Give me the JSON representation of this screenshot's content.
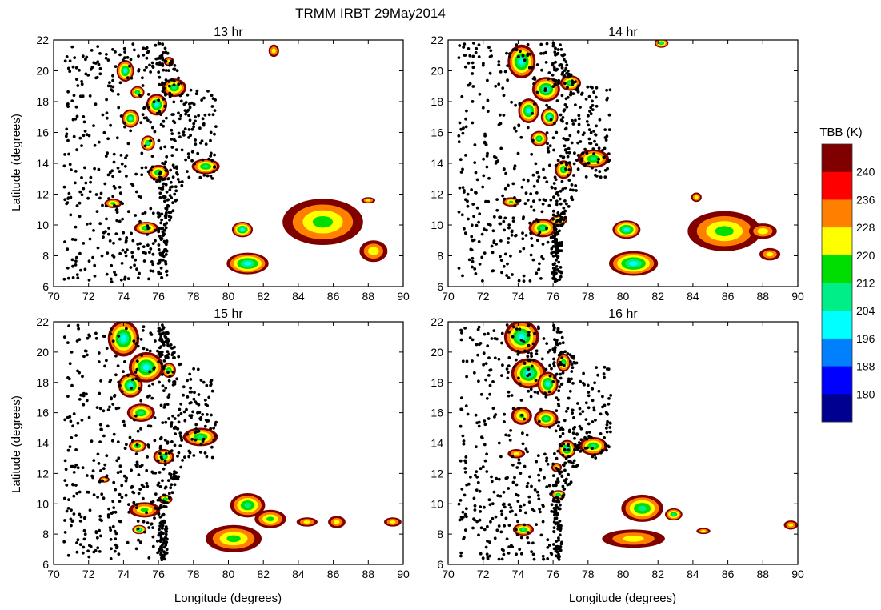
{
  "figure_title": "TRMM IRBT 29May2014",
  "xlabel": "Longitude (degrees)",
  "ylabel": "Latitude (degrees)",
  "colorbar": {
    "title": "TBB (K)",
    "tick_labels": [
      "240",
      "236",
      "228",
      "220",
      "212",
      "204",
      "196",
      "188",
      "180"
    ],
    "colors": [
      "#800000",
      "#ff0000",
      "#ff8000",
      "#ffff00",
      "#00dd00",
      "#00ee88",
      "#00ffff",
      "#0080ff",
      "#0000ff",
      "#000090"
    ]
  },
  "chart_data": [
    {
      "type": "heatmap",
      "title": "13 hr",
      "xlim": [
        70,
        90
      ],
      "ylim": [
        6,
        22
      ],
      "xticks": [
        70,
        72,
        74,
        76,
        78,
        80,
        82,
        84,
        86,
        88,
        90
      ],
      "yticks": [
        6,
        8,
        10,
        12,
        14,
        16,
        18,
        20,
        22
      ],
      "cloud_clusters": [
        {
          "lon": 74.1,
          "lat": 20.0,
          "rx": 0.5,
          "ry": 0.7,
          "min_tbb": 205
        },
        {
          "lon": 74.8,
          "lat": 18.6,
          "rx": 0.4,
          "ry": 0.4,
          "min_tbb": 212
        },
        {
          "lon": 75.9,
          "lat": 17.8,
          "rx": 0.6,
          "ry": 0.7,
          "min_tbb": 204
        },
        {
          "lon": 76.9,
          "lat": 18.9,
          "rx": 0.7,
          "ry": 0.6,
          "min_tbb": 212
        },
        {
          "lon": 74.4,
          "lat": 16.9,
          "rx": 0.5,
          "ry": 0.6,
          "min_tbb": 208
        },
        {
          "lon": 75.4,
          "lat": 15.3,
          "rx": 0.4,
          "ry": 0.5,
          "min_tbb": 210
        },
        {
          "lon": 76.0,
          "lat": 13.4,
          "rx": 0.6,
          "ry": 0.5,
          "min_tbb": 212
        },
        {
          "lon": 78.7,
          "lat": 13.8,
          "rx": 0.8,
          "ry": 0.5,
          "min_tbb": 212
        },
        {
          "lon": 73.4,
          "lat": 11.4,
          "rx": 0.5,
          "ry": 0.3,
          "min_tbb": 218
        },
        {
          "lon": 75.3,
          "lat": 9.8,
          "rx": 0.7,
          "ry": 0.4,
          "min_tbb": 212
        },
        {
          "lon": 80.8,
          "lat": 9.7,
          "rx": 0.6,
          "ry": 0.5,
          "min_tbb": 204
        },
        {
          "lon": 81.1,
          "lat": 7.5,
          "rx": 1.2,
          "ry": 0.7,
          "min_tbb": 204
        },
        {
          "lon": 85.4,
          "lat": 10.2,
          "rx": 2.3,
          "ry": 1.5,
          "min_tbb": 220
        },
        {
          "lon": 88.3,
          "lat": 8.3,
          "rx": 0.8,
          "ry": 0.7,
          "min_tbb": 226
        },
        {
          "lon": 82.6,
          "lat": 21.3,
          "rx": 0.3,
          "ry": 0.4,
          "min_tbb": 226
        },
        {
          "lon": 76.6,
          "lat": 20.6,
          "rx": 0.3,
          "ry": 0.3,
          "min_tbb": 226
        },
        {
          "lon": 88.0,
          "lat": 11.6,
          "rx": 0.4,
          "ry": 0.2,
          "min_tbb": 228
        }
      ]
    },
    {
      "type": "heatmap",
      "title": "14 hr",
      "xlim": [
        70,
        90
      ],
      "ylim": [
        6,
        22
      ],
      "xticks": [
        70,
        72,
        74,
        76,
        78,
        80,
        82,
        84,
        86,
        88,
        90
      ],
      "yticks": [
        6,
        8,
        10,
        12,
        14,
        16,
        18,
        20,
        22
      ],
      "cloud_clusters": [
        {
          "lon": 74.2,
          "lat": 20.6,
          "rx": 0.8,
          "ry": 1.1,
          "min_tbb": 204
        },
        {
          "lon": 75.6,
          "lat": 18.8,
          "rx": 0.8,
          "ry": 0.8,
          "min_tbb": 204
        },
        {
          "lon": 77.0,
          "lat": 19.2,
          "rx": 0.6,
          "ry": 0.5,
          "min_tbb": 212
        },
        {
          "lon": 74.6,
          "lat": 17.4,
          "rx": 0.6,
          "ry": 0.8,
          "min_tbb": 204
        },
        {
          "lon": 75.8,
          "lat": 17.0,
          "rx": 0.5,
          "ry": 0.6,
          "min_tbb": 204
        },
        {
          "lon": 75.2,
          "lat": 15.6,
          "rx": 0.5,
          "ry": 0.5,
          "min_tbb": 212
        },
        {
          "lon": 76.6,
          "lat": 13.6,
          "rx": 0.5,
          "ry": 0.6,
          "min_tbb": 212
        },
        {
          "lon": 78.3,
          "lat": 14.3,
          "rx": 0.9,
          "ry": 0.6,
          "min_tbb": 212
        },
        {
          "lon": 73.6,
          "lat": 11.5,
          "rx": 0.5,
          "ry": 0.3,
          "min_tbb": 220
        },
        {
          "lon": 75.4,
          "lat": 9.8,
          "rx": 0.8,
          "ry": 0.6,
          "min_tbb": 212
        },
        {
          "lon": 76.3,
          "lat": 10.3,
          "rx": 0.5,
          "ry": 0.3,
          "min_tbb": 212
        },
        {
          "lon": 80.2,
          "lat": 9.7,
          "rx": 0.8,
          "ry": 0.6,
          "min_tbb": 204
        },
        {
          "lon": 80.6,
          "lat": 7.5,
          "rx": 1.4,
          "ry": 0.8,
          "min_tbb": 204
        },
        {
          "lon": 85.8,
          "lat": 9.6,
          "rx": 2.1,
          "ry": 1.3,
          "min_tbb": 220
        },
        {
          "lon": 84.2,
          "lat": 11.8,
          "rx": 0.3,
          "ry": 0.3,
          "min_tbb": 226
        },
        {
          "lon": 88.0,
          "lat": 9.6,
          "rx": 0.8,
          "ry": 0.5,
          "min_tbb": 226
        },
        {
          "lon": 88.4,
          "lat": 8.1,
          "rx": 0.6,
          "ry": 0.4,
          "min_tbb": 228
        },
        {
          "lon": 82.2,
          "lat": 21.8,
          "rx": 0.4,
          "ry": 0.3,
          "min_tbb": 212
        }
      ]
    },
    {
      "type": "heatmap",
      "title": "15 hr",
      "xlim": [
        70,
        90
      ],
      "ylim": [
        6,
        22
      ],
      "xticks": [
        70,
        72,
        74,
        76,
        78,
        80,
        82,
        84,
        86,
        88,
        90
      ],
      "yticks": [
        6,
        8,
        10,
        12,
        14,
        16,
        18,
        20,
        22
      ],
      "cloud_clusters": [
        {
          "lon": 74.0,
          "lat": 20.9,
          "rx": 0.9,
          "ry": 1.2,
          "min_tbb": 204
        },
        {
          "lon": 75.3,
          "lat": 19.0,
          "rx": 1.0,
          "ry": 1.0,
          "min_tbb": 204
        },
        {
          "lon": 74.4,
          "lat": 17.8,
          "rx": 0.7,
          "ry": 0.8,
          "min_tbb": 204
        },
        {
          "lon": 76.6,
          "lat": 18.8,
          "rx": 0.4,
          "ry": 0.5,
          "min_tbb": 212
        },
        {
          "lon": 75.0,
          "lat": 16.0,
          "rx": 0.8,
          "ry": 0.6,
          "min_tbb": 212
        },
        {
          "lon": 74.8,
          "lat": 13.8,
          "rx": 0.5,
          "ry": 0.4,
          "min_tbb": 212
        },
        {
          "lon": 76.3,
          "lat": 13.1,
          "rx": 0.6,
          "ry": 0.5,
          "min_tbb": 212
        },
        {
          "lon": 78.4,
          "lat": 14.4,
          "rx": 1.0,
          "ry": 0.6,
          "min_tbb": 212
        },
        {
          "lon": 75.2,
          "lat": 9.6,
          "rx": 0.9,
          "ry": 0.5,
          "min_tbb": 220
        },
        {
          "lon": 76.4,
          "lat": 10.3,
          "rx": 0.4,
          "ry": 0.3,
          "min_tbb": 212
        },
        {
          "lon": 74.9,
          "lat": 8.3,
          "rx": 0.4,
          "ry": 0.3,
          "min_tbb": 204
        },
        {
          "lon": 72.9,
          "lat": 11.6,
          "rx": 0.3,
          "ry": 0.2,
          "min_tbb": 228
        },
        {
          "lon": 81.1,
          "lat": 9.9,
          "rx": 1.0,
          "ry": 0.8,
          "min_tbb": 212
        },
        {
          "lon": 80.3,
          "lat": 7.7,
          "rx": 1.6,
          "ry": 0.9,
          "min_tbb": 220
        },
        {
          "lon": 82.4,
          "lat": 9.0,
          "rx": 0.9,
          "ry": 0.6,
          "min_tbb": 220
        },
        {
          "lon": 84.5,
          "lat": 8.8,
          "rx": 0.6,
          "ry": 0.3,
          "min_tbb": 228
        },
        {
          "lon": 86.2,
          "lat": 8.8,
          "rx": 0.5,
          "ry": 0.4,
          "min_tbb": 228
        },
        {
          "lon": 89.4,
          "lat": 8.8,
          "rx": 0.5,
          "ry": 0.3,
          "min_tbb": 228
        }
      ]
    },
    {
      "type": "heatmap",
      "title": "16 hr",
      "xlim": [
        70,
        90
      ],
      "ylim": [
        6,
        22
      ],
      "xticks": [
        70,
        72,
        74,
        76,
        78,
        80,
        82,
        84,
        86,
        88,
        90
      ],
      "yticks": [
        6,
        8,
        10,
        12,
        14,
        16,
        18,
        20,
        22
      ],
      "cloud_clusters": [
        {
          "lon": 74.2,
          "lat": 21.0,
          "rx": 1.0,
          "ry": 1.1,
          "min_tbb": 204
        },
        {
          "lon": 74.6,
          "lat": 18.6,
          "rx": 1.0,
          "ry": 1.0,
          "min_tbb": 204
        },
        {
          "lon": 75.7,
          "lat": 17.9,
          "rx": 0.6,
          "ry": 0.8,
          "min_tbb": 204
        },
        {
          "lon": 76.6,
          "lat": 19.3,
          "rx": 0.4,
          "ry": 0.6,
          "min_tbb": 212
        },
        {
          "lon": 74.2,
          "lat": 15.8,
          "rx": 0.6,
          "ry": 0.6,
          "min_tbb": 220
        },
        {
          "lon": 75.6,
          "lat": 15.6,
          "rx": 0.7,
          "ry": 0.6,
          "min_tbb": 212
        },
        {
          "lon": 73.9,
          "lat": 13.3,
          "rx": 0.5,
          "ry": 0.3,
          "min_tbb": 228
        },
        {
          "lon": 76.8,
          "lat": 13.6,
          "rx": 0.5,
          "ry": 0.6,
          "min_tbb": 204
        },
        {
          "lon": 78.3,
          "lat": 13.8,
          "rx": 0.8,
          "ry": 0.6,
          "min_tbb": 212
        },
        {
          "lon": 76.2,
          "lat": 12.4,
          "rx": 0.3,
          "ry": 0.3,
          "min_tbb": 226
        },
        {
          "lon": 76.3,
          "lat": 10.6,
          "rx": 0.4,
          "ry": 0.3,
          "min_tbb": 212
        },
        {
          "lon": 74.3,
          "lat": 8.3,
          "rx": 0.6,
          "ry": 0.4,
          "min_tbb": 212
        },
        {
          "lon": 81.1,
          "lat": 9.7,
          "rx": 1.2,
          "ry": 0.9,
          "min_tbb": 212
        },
        {
          "lon": 80.6,
          "lat": 7.7,
          "rx": 1.8,
          "ry": 0.6,
          "min_tbb": 228
        },
        {
          "lon": 82.9,
          "lat": 9.3,
          "rx": 0.5,
          "ry": 0.4,
          "min_tbb": 212
        },
        {
          "lon": 84.6,
          "lat": 8.2,
          "rx": 0.4,
          "ry": 0.2,
          "min_tbb": 228
        },
        {
          "lon": 89.6,
          "lat": 8.6,
          "rx": 0.4,
          "ry": 0.3,
          "min_tbb": 228
        }
      ]
    }
  ]
}
